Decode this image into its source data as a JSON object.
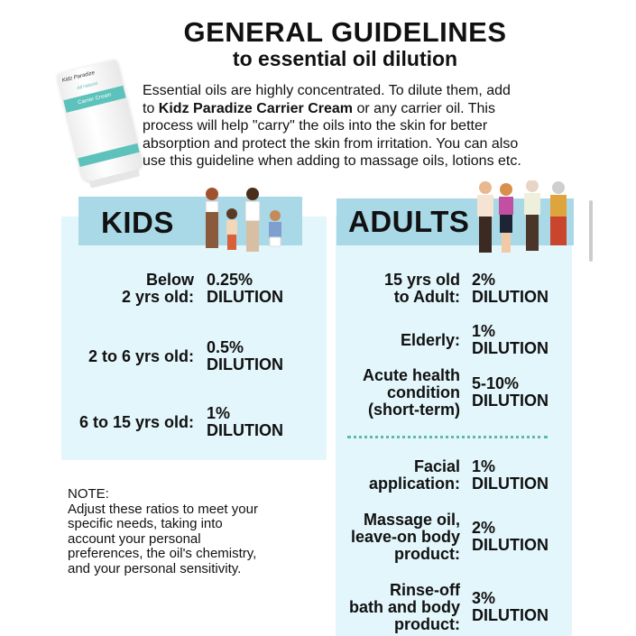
{
  "header": {
    "title": "GENERAL GUIDELINES",
    "subtitle": "to essential oil dilution"
  },
  "product": {
    "brand": "Kidz Paradize",
    "tag": "All Natural",
    "name": "Carrier Cream",
    "icon": "cream-tube-image"
  },
  "intro": {
    "line1": "Essential oils are highly concentrated. To dilute them, add",
    "line2_pre": "to ",
    "line2_bold": "Kidz Paradize Carrier Cream",
    "line2_post": " or any carrier oil. This",
    "line3": "process will help \"carry\" the oils into the skin for better",
    "line4": "absorption and protect the skin from irritation. You can also",
    "line5": "use this guideline when adding to massage oils, lotions etc."
  },
  "kids": {
    "heading": "KIDS",
    "rows": [
      {
        "label": "Below\n2 yrs old:",
        "value": "0.25%\nDILUTION"
      },
      {
        "label": "2 to 6 yrs old:",
        "value": "0.5%\nDILUTION"
      },
      {
        "label": "6 to 15 yrs old:",
        "value": "1%\nDILUTION"
      }
    ]
  },
  "adults": {
    "heading": "ADULTS",
    "rows": [
      {
        "label": "15 yrs old\nto Adult:",
        "value": "2%\nDILUTION"
      },
      {
        "label": "Elderly:",
        "value": "1%\nDILUTION"
      },
      {
        "label": "Acute health\ncondition\n(short-term)",
        "value": "5-10%\nDILUTION"
      },
      {
        "label": "Facial\napplication:",
        "value": "1%\nDILUTION"
      },
      {
        "label": "Massage oil,\nleave-on body\nproduct:",
        "value": "2%\nDILUTION"
      },
      {
        "label": "Rinse-off\nbath and body\nproduct:",
        "value": "3%\nDILUTION"
      }
    ]
  },
  "note": {
    "text": "NOTE:\nAdjust these ratios to meet your\nspecific needs, taking into\naccount your personal\npreferences, the oil's chemistry,\nand your personal sensitivity."
  },
  "colors": {
    "panel": "#e3f6fb",
    "band": "#a9d8e7",
    "accent": "#5db8b1"
  }
}
